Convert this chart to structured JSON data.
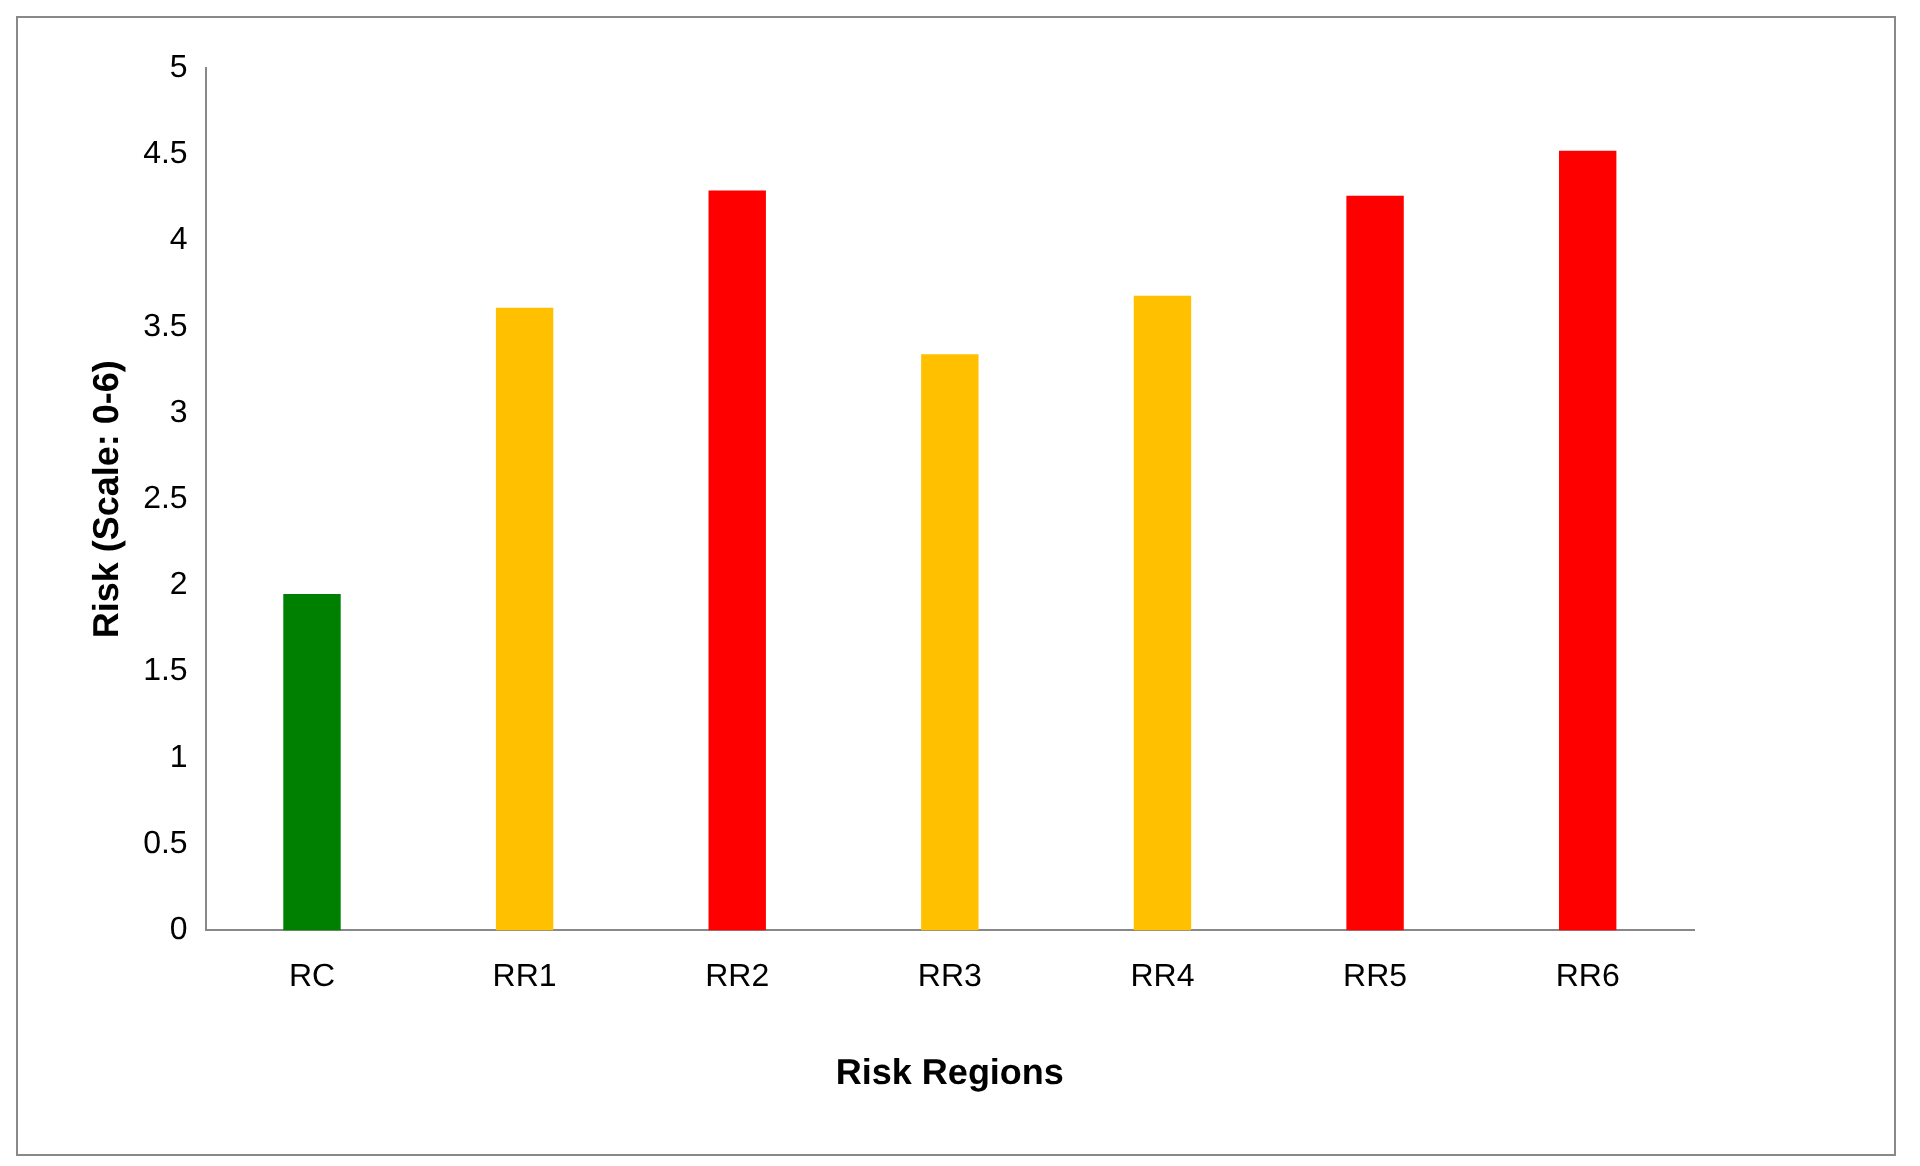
{
  "chart_data": {
    "type": "bar",
    "xlabel": "Risk Regions",
    "ylabel": "Risk (Scale: 0-6)",
    "categories": [
      "RC",
      "RR1",
      "RR2",
      "RR3",
      "RR4",
      "RR5",
      "RR6"
    ],
    "values": [
      1.95,
      3.61,
      4.29,
      3.34,
      3.68,
      4.26,
      4.52
    ],
    "colors": [
      "#008000",
      "#ffc000",
      "#ff0000",
      "#ffc000",
      "#ffc000",
      "#ff0000",
      "#ff0000"
    ],
    "ylim": [
      0,
      5
    ],
    "yticks": [
      0,
      0.5,
      1,
      1.5,
      2,
      2.5,
      3,
      3.5,
      4,
      4.5,
      5
    ],
    "grid": false,
    "legend": false
  }
}
